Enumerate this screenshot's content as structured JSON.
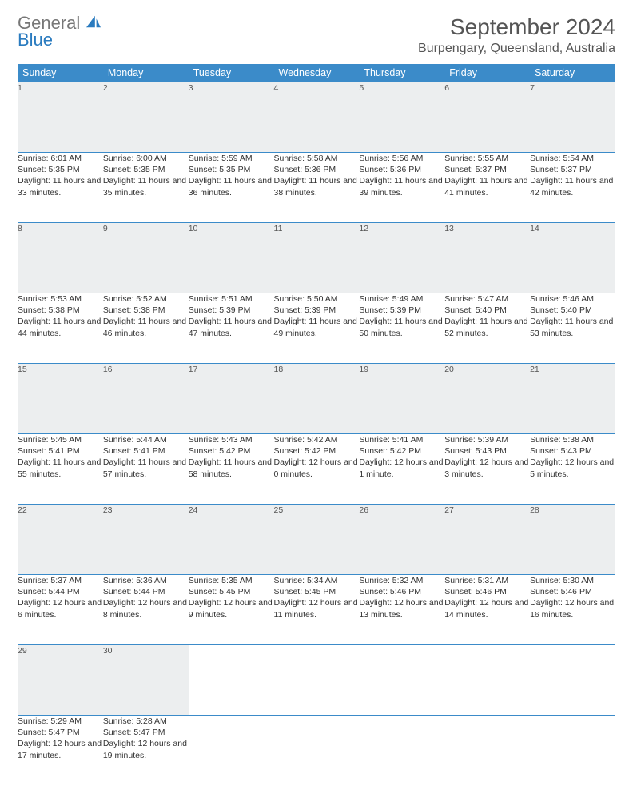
{
  "logo": {
    "text_top": "General",
    "text_bottom": "Blue"
  },
  "title": "September 2024",
  "location": "Burpengary, Queensland, Australia",
  "colors": {
    "header_bg": "#3b8bc9",
    "header_text": "#ffffff",
    "daynum_bg": "#eceeef",
    "border": "#3b8bc9",
    "body_text": "#333333",
    "logo_gray": "#777777",
    "logo_blue": "#2a7bbf"
  },
  "day_headers": [
    "Sunday",
    "Monday",
    "Tuesday",
    "Wednesday",
    "Thursday",
    "Friday",
    "Saturday"
  ],
  "weeks": [
    [
      {
        "n": "1",
        "sr": "6:01 AM",
        "ss": "5:35 PM",
        "dl": "11 hours and 33 minutes."
      },
      {
        "n": "2",
        "sr": "6:00 AM",
        "ss": "5:35 PM",
        "dl": "11 hours and 35 minutes."
      },
      {
        "n": "3",
        "sr": "5:59 AM",
        "ss": "5:35 PM",
        "dl": "11 hours and 36 minutes."
      },
      {
        "n": "4",
        "sr": "5:58 AM",
        "ss": "5:36 PM",
        "dl": "11 hours and 38 minutes."
      },
      {
        "n": "5",
        "sr": "5:56 AM",
        "ss": "5:36 PM",
        "dl": "11 hours and 39 minutes."
      },
      {
        "n": "6",
        "sr": "5:55 AM",
        "ss": "5:37 PM",
        "dl": "11 hours and 41 minutes."
      },
      {
        "n": "7",
        "sr": "5:54 AM",
        "ss": "5:37 PM",
        "dl": "11 hours and 42 minutes."
      }
    ],
    [
      {
        "n": "8",
        "sr": "5:53 AM",
        "ss": "5:38 PM",
        "dl": "11 hours and 44 minutes."
      },
      {
        "n": "9",
        "sr": "5:52 AM",
        "ss": "5:38 PM",
        "dl": "11 hours and 46 minutes."
      },
      {
        "n": "10",
        "sr": "5:51 AM",
        "ss": "5:39 PM",
        "dl": "11 hours and 47 minutes."
      },
      {
        "n": "11",
        "sr": "5:50 AM",
        "ss": "5:39 PM",
        "dl": "11 hours and 49 minutes."
      },
      {
        "n": "12",
        "sr": "5:49 AM",
        "ss": "5:39 PM",
        "dl": "11 hours and 50 minutes."
      },
      {
        "n": "13",
        "sr": "5:47 AM",
        "ss": "5:40 PM",
        "dl": "11 hours and 52 minutes."
      },
      {
        "n": "14",
        "sr": "5:46 AM",
        "ss": "5:40 PM",
        "dl": "11 hours and 53 minutes."
      }
    ],
    [
      {
        "n": "15",
        "sr": "5:45 AM",
        "ss": "5:41 PM",
        "dl": "11 hours and 55 minutes."
      },
      {
        "n": "16",
        "sr": "5:44 AM",
        "ss": "5:41 PM",
        "dl": "11 hours and 57 minutes."
      },
      {
        "n": "17",
        "sr": "5:43 AM",
        "ss": "5:42 PM",
        "dl": "11 hours and 58 minutes."
      },
      {
        "n": "18",
        "sr": "5:42 AM",
        "ss": "5:42 PM",
        "dl": "12 hours and 0 minutes."
      },
      {
        "n": "19",
        "sr": "5:41 AM",
        "ss": "5:42 PM",
        "dl": "12 hours and 1 minute."
      },
      {
        "n": "20",
        "sr": "5:39 AM",
        "ss": "5:43 PM",
        "dl": "12 hours and 3 minutes."
      },
      {
        "n": "21",
        "sr": "5:38 AM",
        "ss": "5:43 PM",
        "dl": "12 hours and 5 minutes."
      }
    ],
    [
      {
        "n": "22",
        "sr": "5:37 AM",
        "ss": "5:44 PM",
        "dl": "12 hours and 6 minutes."
      },
      {
        "n": "23",
        "sr": "5:36 AM",
        "ss": "5:44 PM",
        "dl": "12 hours and 8 minutes."
      },
      {
        "n": "24",
        "sr": "5:35 AM",
        "ss": "5:45 PM",
        "dl": "12 hours and 9 minutes."
      },
      {
        "n": "25",
        "sr": "5:34 AM",
        "ss": "5:45 PM",
        "dl": "12 hours and 11 minutes."
      },
      {
        "n": "26",
        "sr": "5:32 AM",
        "ss": "5:46 PM",
        "dl": "12 hours and 13 minutes."
      },
      {
        "n": "27",
        "sr": "5:31 AM",
        "ss": "5:46 PM",
        "dl": "12 hours and 14 minutes."
      },
      {
        "n": "28",
        "sr": "5:30 AM",
        "ss": "5:46 PM",
        "dl": "12 hours and 16 minutes."
      }
    ],
    [
      {
        "n": "29",
        "sr": "5:29 AM",
        "ss": "5:47 PM",
        "dl": "12 hours and 17 minutes."
      },
      {
        "n": "30",
        "sr": "5:28 AM",
        "ss": "5:47 PM",
        "dl": "12 hours and 19 minutes."
      },
      null,
      null,
      null,
      null,
      null
    ]
  ],
  "labels": {
    "sunrise": "Sunrise:",
    "sunset": "Sunset:",
    "daylight": "Daylight:"
  }
}
